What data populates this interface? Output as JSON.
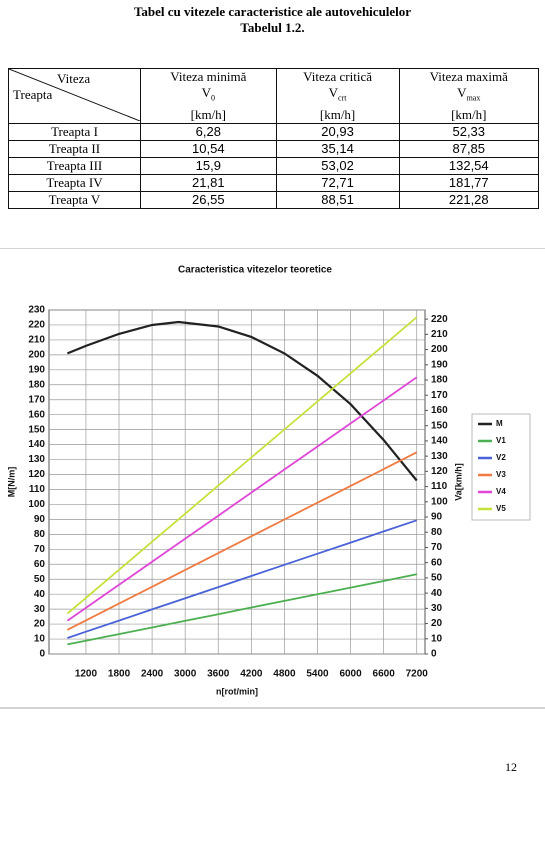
{
  "header": {
    "title": "Tabel cu vitezele caracteristice ale autovehiculelor",
    "subtitle": "Tabelul 1.2."
  },
  "table": {
    "corner": {
      "top": "Viteza",
      "bottom": "Treapta"
    },
    "columns": [
      {
        "name": "Viteza minimă",
        "symbol": "V",
        "subscript": "0",
        "unit": "[km/h]"
      },
      {
        "name": "Viteza critică",
        "symbol": "V",
        "subscript": "crt",
        "unit": "[km/h]"
      },
      {
        "name": "Viteza maximă",
        "symbol": "V",
        "subscript": "max",
        "unit": "[km/h]"
      }
    ],
    "rows": [
      [
        "Treapta I",
        "6,28",
        "20,93",
        "52,33"
      ],
      [
        "Treapta II",
        "10,54",
        "35,14",
        "87,85"
      ],
      [
        "Treapta III",
        "15,9",
        "53,02",
        "132,54"
      ],
      [
        "Treapta IV",
        "21,81",
        "72,71",
        "181,77"
      ],
      [
        "Treapta V",
        "26,55",
        "88,51",
        "221,28"
      ]
    ]
  },
  "chart_data": {
    "type": "line",
    "title": "Caracteristica vitezelor teoretice",
    "x_label": "n[rot/min]",
    "y_label": "M[N/m]",
    "y2_label": "Va[km/h]",
    "x": [
      864,
      1200,
      1800,
      2400,
      2880,
      3600,
      4200,
      4800,
      5400,
      6000,
      6600,
      7200
    ],
    "xlim": [
      530,
      7350
    ],
    "xticks": [
      1200,
      1800,
      2400,
      3000,
      3600,
      4200,
      4800,
      5400,
      6000,
      6600,
      7200
    ],
    "ylim": [
      0,
      230
    ],
    "yticks": [
      0,
      10,
      20,
      30,
      40,
      50,
      60,
      70,
      80,
      90,
      100,
      110,
      120,
      130,
      140,
      150,
      160,
      170,
      180,
      190,
      200,
      210,
      220,
      230
    ],
    "y2lim": [
      0,
      226
    ],
    "y2ticks": [
      0,
      10,
      20,
      30,
      40,
      50,
      60,
      70,
      80,
      90,
      100,
      110,
      120,
      130,
      140,
      150,
      160,
      170,
      180,
      190,
      200,
      210,
      220
    ],
    "grid": true,
    "legend": "right",
    "series": [
      {
        "name": "M",
        "color": "#222222",
        "values": [
          201,
          206,
          214,
          220,
          222,
          219,
          212,
          201,
          186,
          167,
          143,
          116
        ]
      },
      {
        "name": "V1",
        "color": "#4caf50",
        "axis": "y2",
        "values": [
          6.28,
          8.72,
          13.08,
          17.44,
          20.93,
          26.17,
          30.53,
          34.89,
          39.25,
          43.61,
          47.97,
          52.33
        ]
      },
      {
        "name": "V2",
        "color": "#4a62d8",
        "axis": "y2",
        "values": [
          10.54,
          14.64,
          21.96,
          29.28,
          35.14,
          43.93,
          51.25,
          58.57,
          65.89,
          73.21,
          80.53,
          87.85
        ]
      },
      {
        "name": "V3",
        "color": "#f07a40",
        "axis": "y2",
        "values": [
          15.9,
          22.09,
          33.14,
          44.18,
          53.02,
          66.27,
          77.32,
          88.36,
          99.41,
          110.45,
          121.5,
          132.54
        ]
      },
      {
        "name": "V4",
        "color": "#e046d8",
        "axis": "y2",
        "values": [
          21.81,
          30.3,
          45.44,
          60.59,
          72.71,
          90.89,
          106.03,
          121.18,
          136.33,
          151.48,
          166.62,
          181.77
        ]
      },
      {
        "name": "V5",
        "color": "#c4e23c",
        "axis": "y2",
        "values": [
          26.55,
          36.88,
          55.32,
          73.76,
          88.51,
          110.64,
          129.08,
          147.52,
          165.96,
          184.4,
          202.84,
          221.28
        ]
      }
    ]
  },
  "page_number": "12"
}
